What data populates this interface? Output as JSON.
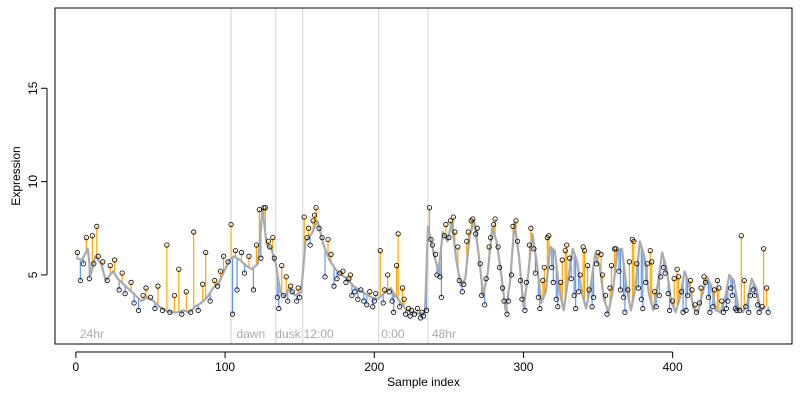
{
  "chart_data": {
    "type": "scatter",
    "title": "",
    "xlabel": "Sample index",
    "ylabel": "Expression",
    "xlim": [
      -14,
      480
    ],
    "ylim": [
      1.3,
      19.3
    ],
    "x_ticks": [
      0,
      100,
      200,
      300,
      400
    ],
    "y_ticks": [
      5,
      10,
      15
    ],
    "grid": false,
    "legend": "none",
    "colors": {
      "fitted_line": "#aaaaaa",
      "residual_above": "#ffa500",
      "residual_below": "#6495ed",
      "points_edge": "#000000",
      "separator": "#d3d3d3",
      "annotation_text": "#aaaaaa"
    },
    "separators": [
      104,
      134,
      152,
      203,
      236
    ],
    "segment_labels": [
      {
        "x": 2,
        "text": "24hr"
      },
      {
        "x": 107,
        "text": "dawn"
      },
      {
        "x": 133,
        "text": "dusk"
      },
      {
        "x": 152,
        "text": "12:00"
      },
      {
        "x": 204,
        "text": "0:00"
      },
      {
        "x": 238,
        "text": "48hr"
      }
    ],
    "fitted_points": [
      [
        0,
        5.9
      ],
      [
        4,
        5.8
      ],
      [
        8,
        6.4
      ],
      [
        10,
        5.0
      ],
      [
        13,
        6.0
      ],
      [
        17,
        5.6
      ],
      [
        20,
        4.7
      ],
      [
        25,
        5.2
      ],
      [
        28,
        4.8
      ],
      [
        32,
        4.5
      ],
      [
        36,
        4.2
      ],
      [
        40,
        3.9
      ],
      [
        44,
        3.6
      ],
      [
        48,
        3.8
      ],
      [
        52,
        3.6
      ],
      [
        56,
        3.3
      ],
      [
        60,
        3.1
      ],
      [
        64,
        3.0
      ],
      [
        68,
        3.0
      ],
      [
        72,
        3.1
      ],
      [
        76,
        3.0
      ],
      [
        80,
        3.3
      ],
      [
        84,
        3.5
      ],
      [
        88,
        3.8
      ],
      [
        92,
        4.3
      ],
      [
        96,
        4.6
      ],
      [
        100,
        5.3
      ],
      [
        103,
        5.8
      ],
      [
        106,
        6.0
      ],
      [
        110,
        5.8
      ],
      [
        114,
        5.5
      ],
      [
        118,
        5.3
      ],
      [
        122,
        5.6
      ],
      [
        125,
        8.5
      ],
      [
        128,
        6.6
      ],
      [
        131,
        6.4
      ],
      [
        134,
        5.6
      ],
      [
        137,
        4.1
      ],
      [
        140,
        3.8
      ],
      [
        143,
        4.3
      ],
      [
        147,
        3.9
      ],
      [
        151,
        4.1
      ],
      [
        154,
        6.8
      ],
      [
        158,
        7.2
      ],
      [
        162,
        7.9
      ],
      [
        166,
        6.6
      ],
      [
        170,
        5.8
      ],
      [
        174,
        5.3
      ],
      [
        178,
        5.0
      ],
      [
        182,
        4.8
      ],
      [
        186,
        4.4
      ],
      [
        190,
        4.2
      ],
      [
        194,
        4.0
      ],
      [
        198,
        3.8
      ],
      [
        202,
        3.7
      ],
      [
        205,
        3.9
      ],
      [
        208,
        4.1
      ],
      [
        211,
        4.3
      ],
      [
        214,
        3.9
      ],
      [
        218,
        3.5
      ],
      [
        222,
        3.1
      ],
      [
        226,
        3.0
      ],
      [
        230,
        2.9
      ],
      [
        234,
        3.0
      ],
      [
        236,
        7.6
      ],
      [
        240,
        6.1
      ],
      [
        243,
        5.2
      ],
      [
        246,
        7.3
      ],
      [
        249,
        6.8
      ],
      [
        252,
        7.8
      ],
      [
        255,
        5.8
      ],
      [
        258,
        4.4
      ],
      [
        261,
        4.8
      ],
      [
        264,
        7.1
      ],
      [
        267,
        7.9
      ],
      [
        270,
        6.1
      ],
      [
        273,
        3.9
      ],
      [
        276,
        5.1
      ],
      [
        279,
        7.5
      ],
      [
        282,
        6.8
      ],
      [
        285,
        5.1
      ],
      [
        288,
        3.1
      ],
      [
        291,
        4.6
      ],
      [
        294,
        7.8
      ],
      [
        297,
        6.0
      ],
      [
        300,
        3.3
      ],
      [
        303,
        4.9
      ],
      [
        306,
        7.2
      ],
      [
        309,
        5.6
      ],
      [
        312,
        3.5
      ],
      [
        315,
        4.1
      ],
      [
        318,
        6.5
      ],
      [
        321,
        6.3
      ],
      [
        324,
        4.2
      ],
      [
        327,
        3.1
      ],
      [
        330,
        4.8
      ],
      [
        333,
        6.4
      ],
      [
        336,
        5.7
      ],
      [
        339,
        4.1
      ],
      [
        342,
        3.2
      ],
      [
        345,
        4.4
      ],
      [
        348,
        6.1
      ],
      [
        351,
        5.5
      ],
      [
        354,
        3.7
      ],
      [
        357,
        3.0
      ],
      [
        360,
        4.2
      ],
      [
        363,
        6.3
      ],
      [
        366,
        6.4
      ],
      [
        369,
        4.4
      ],
      [
        372,
        3.1
      ],
      [
        375,
        4.3
      ],
      [
        378,
        6.8
      ],
      [
        381,
        6.0
      ],
      [
        384,
        4.0
      ],
      [
        387,
        3.1
      ],
      [
        390,
        4.5
      ],
      [
        393,
        6.2
      ],
      [
        396,
        5.3
      ],
      [
        399,
        3.6
      ],
      [
        402,
        3.0
      ],
      [
        405,
        3.8
      ],
      [
        408,
        5.2
      ],
      [
        411,
        4.5
      ],
      [
        414,
        3.2
      ],
      [
        417,
        3.0
      ],
      [
        420,
        4.0
      ],
      [
        423,
        4.9
      ],
      [
        426,
        4.4
      ],
      [
        429,
        3.1
      ],
      [
        432,
        3.0
      ],
      [
        435,
        3.7
      ],
      [
        438,
        5.0
      ],
      [
        441,
        4.7
      ],
      [
        444,
        3.3
      ],
      [
        447,
        3.0
      ],
      [
        450,
        3.5
      ],
      [
        453,
        4.8
      ],
      [
        456,
        4.3
      ],
      [
        459,
        3.1
      ],
      [
        462,
        3.3
      ]
    ],
    "observed_points": [
      [
        1,
        6.2
      ],
      [
        3,
        4.7
      ],
      [
        5,
        5.6
      ],
      [
        7,
        7.0
      ],
      [
        9,
        4.8
      ],
      [
        11,
        7.1
      ],
      [
        12,
        5.6
      ],
      [
        14,
        7.6
      ],
      [
        15,
        6.0
      ],
      [
        18,
        5.7
      ],
      [
        21,
        4.7
      ],
      [
        23,
        5.5
      ],
      [
        26,
        5.8
      ],
      [
        29,
        4.2
      ],
      [
        31,
        5.1
      ],
      [
        33,
        4.0
      ],
      [
        37,
        4.6
      ],
      [
        39,
        3.5
      ],
      [
        42,
        3.1
      ],
      [
        45,
        3.9
      ],
      [
        47,
        4.3
      ],
      [
        50,
        3.8
      ],
      [
        53,
        3.2
      ],
      [
        55,
        4.4
      ],
      [
        58,
        3.1
      ],
      [
        61,
        6.6
      ],
      [
        63,
        3.0
      ],
      [
        66,
        3.9
      ],
      [
        69,
        5.3
      ],
      [
        71,
        2.9
      ],
      [
        74,
        4.1
      ],
      [
        77,
        3.0
      ],
      [
        79,
        7.3
      ],
      [
        82,
        3.1
      ],
      [
        85,
        4.5
      ],
      [
        87,
        6.2
      ],
      [
        90,
        3.6
      ],
      [
        93,
        4.7
      ],
      [
        95,
        4.4
      ],
      [
        97,
        5.2
      ],
      [
        99,
        6.0
      ],
      [
        102,
        5.7
      ],
      [
        104,
        7.7
      ],
      [
        105,
        2.9
      ],
      [
        107,
        6.3
      ],
      [
        108,
        4.2
      ],
      [
        111,
        6.2
      ],
      [
        113,
        5.1
      ],
      [
        116,
        6.0
      ],
      [
        119,
        4.2
      ],
      [
        121,
        6.6
      ],
      [
        123,
        8.5
      ],
      [
        124,
        5.9
      ],
      [
        126,
        8.6
      ],
      [
        127,
        8.6
      ],
      [
        129,
        6.8
      ],
      [
        130,
        6.5
      ],
      [
        132,
        7.0
      ],
      [
        133,
        5.9
      ],
      [
        135,
        3.8
      ],
      [
        136,
        3.2
      ],
      [
        138,
        5.5
      ],
      [
        139,
        3.9
      ],
      [
        141,
        4.9
      ],
      [
        142,
        3.6
      ],
      [
        144,
        4.4
      ],
      [
        145,
        4.1
      ],
      [
        148,
        3.6
      ],
      [
        149,
        4.3
      ],
      [
        150,
        3.8
      ],
      [
        153,
        8.1
      ],
      [
        155,
        7.0
      ],
      [
        156,
        7.5
      ],
      [
        157,
        6.6
      ],
      [
        159,
        7.9
      ],
      [
        160,
        8.2
      ],
      [
        161,
        8.6
      ],
      [
        163,
        7.5
      ],
      [
        165,
        7.0
      ],
      [
        167,
        4.9
      ],
      [
        169,
        6.9
      ],
      [
        171,
        6.1
      ],
      [
        173,
        4.4
      ],
      [
        175,
        4.8
      ],
      [
        177,
        5.1
      ],
      [
        179,
        5.2
      ],
      [
        181,
        4.6
      ],
      [
        183,
        4.8
      ],
      [
        184,
        5.0
      ],
      [
        185,
        3.9
      ],
      [
        187,
        4.1
      ],
      [
        189,
        3.7
      ],
      [
        191,
        4.2
      ],
      [
        193,
        3.6
      ],
      [
        195,
        3.4
      ],
      [
        197,
        4.1
      ],
      [
        199,
        3.3
      ],
      [
        200,
        3.6
      ],
      [
        201,
        4.0
      ],
      [
        204,
        6.3
      ],
      [
        206,
        3.5
      ],
      [
        207,
        4.2
      ],
      [
        209,
        5.0
      ],
      [
        210,
        4.1
      ],
      [
        212,
        3.6
      ],
      [
        213,
        3.0
      ],
      [
        215,
        5.5
      ],
      [
        216,
        7.2
      ],
      [
        217,
        3.3
      ],
      [
        219,
        4.3
      ],
      [
        220,
        3.7
      ],
      [
        221,
        2.9
      ],
      [
        223,
        3.2
      ],
      [
        224,
        2.8
      ],
      [
        225,
        3.1
      ],
      [
        227,
        2.9
      ],
      [
        229,
        3.2
      ],
      [
        231,
        2.7
      ],
      [
        232,
        3.0
      ],
      [
        233,
        2.8
      ],
      [
        235,
        3.1
      ],
      [
        237,
        8.6
      ],
      [
        238,
        6.9
      ],
      [
        239,
        6.6
      ],
      [
        241,
        6.1
      ],
      [
        242,
        5.0
      ],
      [
        244,
        4.9
      ],
      [
        245,
        3.8
      ],
      [
        247,
        7.1
      ],
      [
        248,
        7.7
      ],
      [
        250,
        7.0
      ],
      [
        251,
        7.9
      ],
      [
        253,
        8.1
      ],
      [
        254,
        7.3
      ],
      [
        256,
        6.5
      ],
      [
        257,
        4.7
      ],
      [
        259,
        4.1
      ],
      [
        260,
        4.5
      ],
      [
        262,
        6.8
      ],
      [
        263,
        7.3
      ],
      [
        265,
        7.9
      ],
      [
        266,
        8.0
      ],
      [
        268,
        7.2
      ],
      [
        269,
        7.5
      ],
      [
        271,
        5.6
      ],
      [
        272,
        3.9
      ],
      [
        274,
        3.4
      ],
      [
        275,
        4.8
      ],
      [
        277,
        6.5
      ],
      [
        278,
        7.0
      ],
      [
        280,
        7.7
      ],
      [
        281,
        8.0
      ],
      [
        283,
        6.5
      ],
      [
        284,
        5.4
      ],
      [
        286,
        4.3
      ],
      [
        287,
        3.6
      ],
      [
        289,
        2.9
      ],
      [
        290,
        3.6
      ],
      [
        292,
        5.0
      ],
      [
        293,
        7.6
      ],
      [
        295,
        7.9
      ],
      [
        296,
        6.8
      ],
      [
        298,
        4.7
      ],
      [
        299,
        3.7
      ],
      [
        301,
        3.1
      ],
      [
        302,
        4.6
      ],
      [
        304,
        6.6
      ],
      [
        305,
        7.5
      ],
      [
        307,
        6.4
      ],
      [
        308,
        5.1
      ],
      [
        310,
        3.8
      ],
      [
        311,
        3.2
      ],
      [
        313,
        4.7
      ],
      [
        314,
        5.4
      ],
      [
        316,
        7.0
      ],
      [
        317,
        7.1
      ],
      [
        319,
        5.4
      ],
      [
        320,
        4.6
      ],
      [
        322,
        3.7
      ],
      [
        323,
        3.3
      ],
      [
        325,
        4.6
      ],
      [
        326,
        5.8
      ],
      [
        328,
        6.3
      ],
      [
        329,
        6.6
      ],
      [
        331,
        5.9
      ],
      [
        332,
        4.8
      ],
      [
        334,
        3.9
      ],
      [
        335,
        3.2
      ],
      [
        337,
        4.1
      ],
      [
        338,
        5.0
      ],
      [
        340,
        6.5
      ],
      [
        341,
        6.3
      ],
      [
        343,
        5.5
      ],
      [
        344,
        4.2
      ],
      [
        346,
        3.3
      ],
      [
        347,
        3.8
      ],
      [
        349,
        5.6
      ],
      [
        350,
        6.2
      ],
      [
        352,
        6.1
      ],
      [
        353,
        5.0
      ],
      [
        355,
        3.9
      ],
      [
        356,
        2.9
      ],
      [
        358,
        4.3
      ],
      [
        359,
        5.5
      ],
      [
        361,
        6.4
      ],
      [
        362,
        6.4
      ],
      [
        364,
        5.2
      ],
      [
        365,
        4.2
      ],
      [
        367,
        3.8
      ],
      [
        368,
        3.0
      ],
      [
        370,
        4.2
      ],
      [
        371,
        5.7
      ],
      [
        373,
        6.9
      ],
      [
        374,
        6.8
      ],
      [
        376,
        5.6
      ],
      [
        377,
        4.3
      ],
      [
        379,
        3.7
      ],
      [
        380,
        3.2
      ],
      [
        382,
        4.6
      ],
      [
        383,
        5.6
      ],
      [
        385,
        6.3
      ],
      [
        386,
        5.7
      ],
      [
        388,
        4.1
      ],
      [
        389,
        3.3
      ],
      [
        391,
        3.9
      ],
      [
        392,
        4.9
      ],
      [
        394,
        5.4
      ],
      [
        395,
        5.1
      ],
      [
        397,
        4.0
      ],
      [
        398,
        3.1
      ],
      [
        400,
        3.6
      ],
      [
        401,
        4.8
      ],
      [
        403,
        5.3
      ],
      [
        404,
        4.9
      ],
      [
        406,
        4.1
      ],
      [
        407,
        3.0
      ],
      [
        409,
        3.1
      ],
      [
        410,
        3.9
      ],
      [
        412,
        4.7
      ],
      [
        413,
        4.2
      ],
      [
        415,
        3.4
      ],
      [
        416,
        3.0
      ],
      [
        418,
        3.5
      ],
      [
        419,
        4.3
      ],
      [
        421,
        4.9
      ],
      [
        422,
        4.6
      ],
      [
        424,
        3.8
      ],
      [
        425,
        3.0
      ],
      [
        427,
        3.3
      ],
      [
        428,
        4.2
      ],
      [
        430,
        4.7
      ],
      [
        431,
        4.3
      ],
      [
        433,
        3.6
      ],
      [
        434,
        3.0
      ],
      [
        436,
        3.2
      ],
      [
        437,
        3.6
      ],
      [
        439,
        4.3
      ],
      [
        440,
        3.9
      ],
      [
        442,
        3.2
      ],
      [
        443,
        3.1
      ],
      [
        445,
        3.1
      ],
      [
        446,
        7.1
      ],
      [
        448,
        4.7
      ],
      [
        449,
        3.3
      ],
      [
        451,
        3.0
      ],
      [
        452,
        3.9
      ],
      [
        454,
        4.2
      ],
      [
        455,
        3.9
      ],
      [
        457,
        3.4
      ],
      [
        458,
        3.0
      ],
      [
        460,
        3.3
      ],
      [
        461,
        6.4
      ],
      [
        463,
        4.3
      ],
      [
        464,
        3.0
      ]
    ]
  }
}
